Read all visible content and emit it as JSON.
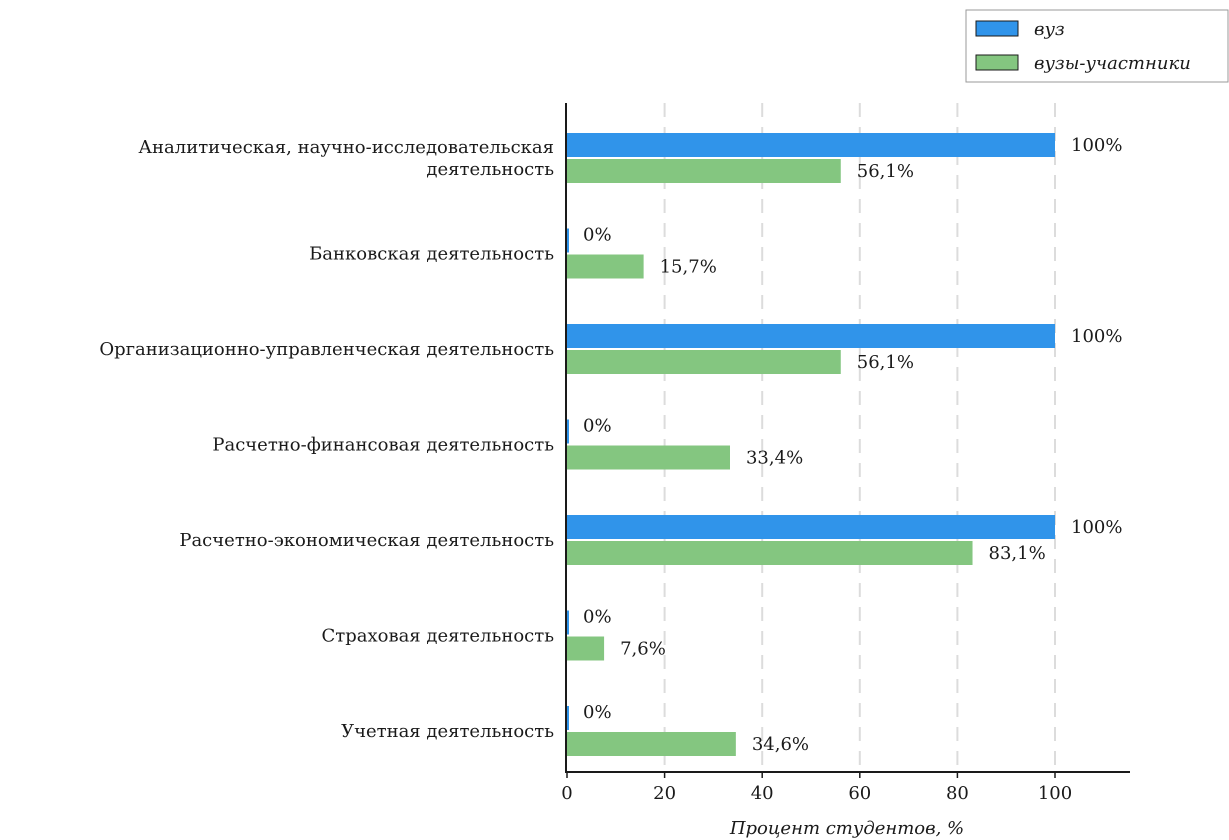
{
  "chart_data": {
    "type": "bar",
    "orientation": "horizontal",
    "categories": [
      [
        "Аналитическая, научно-исследовательская",
        "деятельность"
      ],
      [
        "Банковская деятельность"
      ],
      [
        "Организационно-управленческая деятельность"
      ],
      [
        "Расчетно-финансовая деятельность"
      ],
      [
        "Расчетно-экономическая деятельность"
      ],
      [
        "Страховая деятельность"
      ],
      [
        "Учетная деятельность"
      ]
    ],
    "series": [
      {
        "name": "вуз",
        "color": "#3094ea",
        "values": [
          100,
          0,
          100,
          0,
          100,
          0,
          0
        ],
        "labels": [
          "100%",
          "0%",
          "100%",
          "0%",
          "100%",
          "0%",
          "0%"
        ]
      },
      {
        "name": "вузы-участники",
        "color": "#84c680",
        "values": [
          56.1,
          15.7,
          56.1,
          33.4,
          83.1,
          7.6,
          34.6
        ],
        "labels": [
          "56,1%",
          "15,7%",
          "56,1%",
          "33,4%",
          "83,1%",
          "7,6%",
          "34,6%"
        ]
      }
    ],
    "xlabel": "Процент студентов, %",
    "xlim": [
      0,
      115
    ],
    "xticks": [
      0,
      20,
      40,
      60,
      80,
      100
    ],
    "xtick_labels": [
      "0",
      "20",
      "40",
      "60",
      "80",
      "100"
    ],
    "grid": "vertical-dashed",
    "legend": "top-right"
  }
}
